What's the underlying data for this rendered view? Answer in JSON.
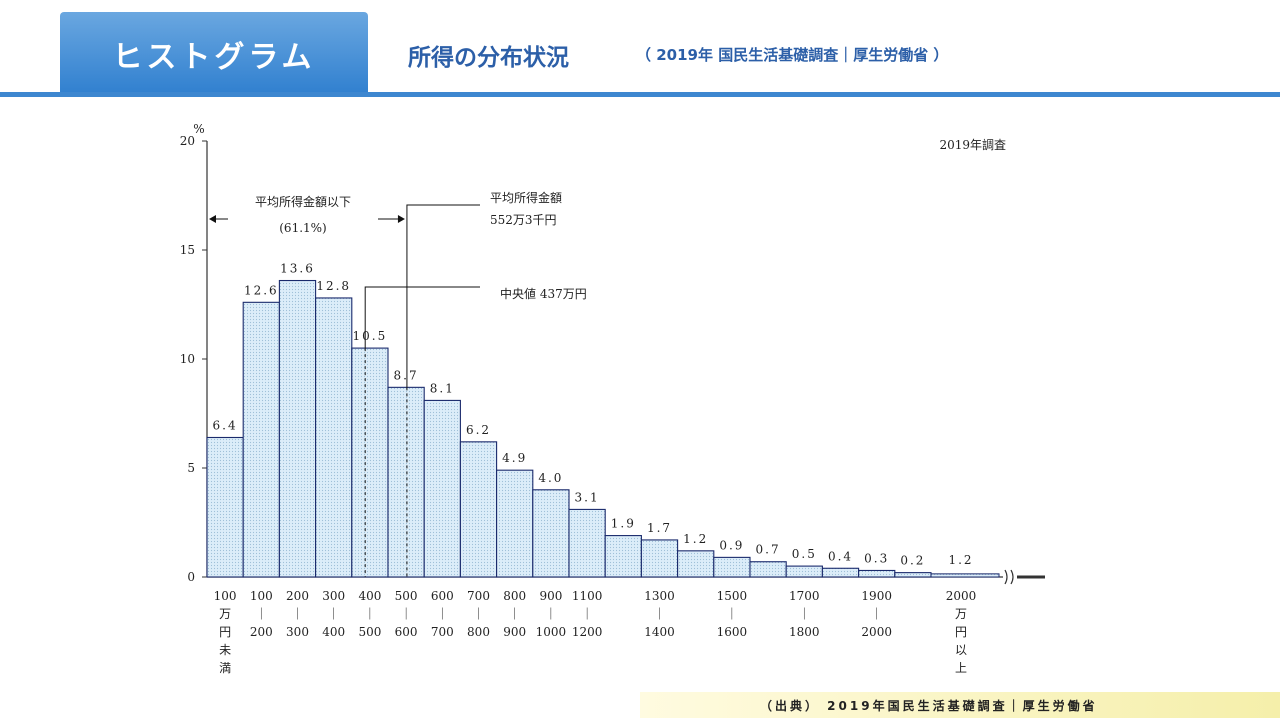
{
  "header": {
    "tab_label": "ヒストグラム",
    "title": "所得の分布状況",
    "subtitle": "（ 2019年 国民生活基礎調査｜厚生労働省 ）"
  },
  "colors": {
    "accent": "#3d87d0",
    "bar_fill": "#d8ecf8",
    "bar_stroke": "#1a2a6c"
  },
  "chart_data": {
    "type": "bar",
    "corner_note": "2019年調査",
    "y_unit": "%",
    "ylim": [
      0,
      20
    ],
    "yticks": [
      "0",
      "5",
      "10",
      "15",
      "20"
    ],
    "categories": [
      [
        "100",
        "万",
        "円",
        "未",
        "満"
      ],
      [
        "100",
        "｜",
        "200"
      ],
      [
        "200",
        "｜",
        "300"
      ],
      [
        "300",
        "｜",
        "400"
      ],
      [
        "400",
        "｜",
        "500"
      ],
      [
        "500",
        "｜",
        "600"
      ],
      [
        "600",
        "｜",
        "700"
      ],
      [
        "700",
        "｜",
        "800"
      ],
      [
        "800",
        "｜",
        "900"
      ],
      [
        "900",
        "｜",
        "1000"
      ],
      [
        "1100",
        "｜",
        "1200"
      ],
      [],
      [
        "1300",
        "｜",
        "1400"
      ],
      [],
      [
        "1500",
        "｜",
        "1600"
      ],
      [],
      [
        "1700",
        "｜",
        "1800"
      ],
      [],
      [
        "1900",
        "｜",
        "2000"
      ],
      [],
      [
        "2000",
        "万",
        "円",
        "以",
        "上"
      ]
    ],
    "values": [
      6.4,
      12.6,
      13.6,
      12.8,
      10.5,
      8.7,
      8.1,
      6.2,
      4.9,
      4.0,
      3.1,
      1.9,
      1.7,
      1.2,
      0.9,
      0.7,
      0.5,
      0.4,
      0.3,
      0.2,
      1.2
    ],
    "value_labels": [
      "6.4",
      "12.6",
      "13.6",
      "12.8",
      "10.5",
      "8.7",
      "8.1",
      "6.2",
      "4.9",
      "4.0",
      "3.1",
      "1.9",
      "1.7",
      "1.2",
      "0.9",
      "0.7",
      "0.5",
      "0.4",
      "0.3",
      "0.2",
      "1.2"
    ],
    "annotations": {
      "below_mean_label": "平均所得金額以下",
      "below_mean_pct": "(61.1%)",
      "mean_label": "平均所得金額",
      "mean_value": "552万3千円",
      "median_label": "中央値  437万円",
      "mean_income": 552.3,
      "median_income": 437
    }
  },
  "footer": {
    "source": "（出典） 2019年国民生活基礎調査｜厚生労働省"
  }
}
